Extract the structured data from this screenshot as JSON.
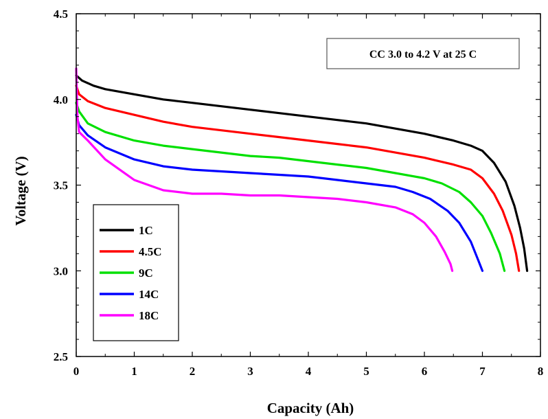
{
  "chart_data": {
    "type": "line",
    "title": "",
    "xlabel": "Capacity (Ah)",
    "ylabel": "Voltage (V)",
    "xlim": [
      0,
      8
    ],
    "ylim": [
      2.5,
      4.5
    ],
    "x_ticks": [
      0,
      1,
      2,
      3,
      4,
      5,
      6,
      7,
      8
    ],
    "x_tick_labels": [
      "0",
      "1",
      "2",
      "3",
      "4",
      "5",
      "6",
      "7",
      "8"
    ],
    "y_ticks": [
      2.5,
      3.0,
      3.5,
      4.0,
      4.5
    ],
    "y_tick_labels": [
      "2.5",
      "3.0",
      "3.5",
      "4.0",
      "4.5"
    ],
    "grid": false,
    "legend_position": "bottom-left",
    "annotation": "CC 3.0 to 4.2 V at 25  C",
    "series": [
      {
        "name": "1C",
        "color": "#000000",
        "points": [
          [
            0.0,
            4.14
          ],
          [
            0.1,
            4.11
          ],
          [
            0.3,
            4.08
          ],
          [
            0.5,
            4.06
          ],
          [
            1.0,
            4.03
          ],
          [
            1.5,
            4.0
          ],
          [
            2.0,
            3.98
          ],
          [
            2.5,
            3.96
          ],
          [
            3.0,
            3.94
          ],
          [
            3.5,
            3.92
          ],
          [
            4.0,
            3.9
          ],
          [
            4.5,
            3.88
          ],
          [
            5.0,
            3.86
          ],
          [
            5.5,
            3.83
          ],
          [
            6.0,
            3.8
          ],
          [
            6.5,
            3.76
          ],
          [
            6.8,
            3.73
          ],
          [
            7.0,
            3.7
          ],
          [
            7.2,
            3.63
          ],
          [
            7.4,
            3.52
          ],
          [
            7.55,
            3.38
          ],
          [
            7.65,
            3.25
          ],
          [
            7.72,
            3.13
          ],
          [
            7.77,
            3.0
          ]
        ]
      },
      {
        "name": "4.5C",
        "color": "#ff0000",
        "points": [
          [
            0.0,
            4.08
          ],
          [
            0.05,
            4.03
          ],
          [
            0.2,
            3.99
          ],
          [
            0.5,
            3.95
          ],
          [
            1.0,
            3.91
          ],
          [
            1.5,
            3.87
          ],
          [
            2.0,
            3.84
          ],
          [
            2.5,
            3.82
          ],
          [
            3.0,
            3.8
          ],
          [
            3.5,
            3.78
          ],
          [
            4.0,
            3.76
          ],
          [
            4.5,
            3.74
          ],
          [
            5.0,
            3.72
          ],
          [
            5.5,
            3.69
          ],
          [
            6.0,
            3.66
          ],
          [
            6.5,
            3.62
          ],
          [
            6.8,
            3.59
          ],
          [
            7.0,
            3.54
          ],
          [
            7.2,
            3.45
          ],
          [
            7.35,
            3.35
          ],
          [
            7.5,
            3.21
          ],
          [
            7.58,
            3.1
          ],
          [
            7.63,
            3.0
          ]
        ]
      },
      {
        "name": "9C",
        "color": "#00e000",
        "points": [
          [
            0.0,
            3.98
          ],
          [
            0.05,
            3.93
          ],
          [
            0.2,
            3.86
          ],
          [
            0.5,
            3.81
          ],
          [
            1.0,
            3.76
          ],
          [
            1.5,
            3.73
          ],
          [
            2.0,
            3.71
          ],
          [
            2.5,
            3.69
          ],
          [
            3.0,
            3.67
          ],
          [
            3.5,
            3.66
          ],
          [
            4.0,
            3.64
          ],
          [
            4.5,
            3.62
          ],
          [
            5.0,
            3.6
          ],
          [
            5.5,
            3.57
          ],
          [
            6.0,
            3.54
          ],
          [
            6.3,
            3.51
          ],
          [
            6.6,
            3.46
          ],
          [
            6.8,
            3.4
          ],
          [
            7.0,
            3.32
          ],
          [
            7.15,
            3.22
          ],
          [
            7.3,
            3.1
          ],
          [
            7.38,
            3.0
          ]
        ]
      },
      {
        "name": "14C",
        "color": "#0000ff",
        "points": [
          [
            0.0,
            3.91
          ],
          [
            0.05,
            3.85
          ],
          [
            0.2,
            3.79
          ],
          [
            0.5,
            3.72
          ],
          [
            1.0,
            3.65
          ],
          [
            1.5,
            3.61
          ],
          [
            2.0,
            3.59
          ],
          [
            2.5,
            3.58
          ],
          [
            3.0,
            3.57
          ],
          [
            3.5,
            3.56
          ],
          [
            4.0,
            3.55
          ],
          [
            4.5,
            3.53
          ],
          [
            5.0,
            3.51
          ],
          [
            5.5,
            3.49
          ],
          [
            5.8,
            3.46
          ],
          [
            6.1,
            3.42
          ],
          [
            6.4,
            3.35
          ],
          [
            6.6,
            3.28
          ],
          [
            6.8,
            3.17
          ],
          [
            6.93,
            3.06
          ],
          [
            7.0,
            3.0
          ]
        ]
      },
      {
        "name": "18C",
        "color": "#ff00ff",
        "points": [
          [
            0.0,
            4.18
          ],
          [
            0.02,
            3.9
          ],
          [
            0.05,
            3.81
          ],
          [
            0.2,
            3.76
          ],
          [
            0.5,
            3.65
          ],
          [
            1.0,
            3.53
          ],
          [
            1.5,
            3.47
          ],
          [
            2.0,
            3.45
          ],
          [
            2.5,
            3.45
          ],
          [
            3.0,
            3.44
          ],
          [
            3.5,
            3.44
          ],
          [
            4.0,
            3.43
          ],
          [
            4.5,
            3.42
          ],
          [
            5.0,
            3.4
          ],
          [
            5.5,
            3.37
          ],
          [
            5.8,
            3.33
          ],
          [
            6.0,
            3.28
          ],
          [
            6.2,
            3.2
          ],
          [
            6.35,
            3.11
          ],
          [
            6.45,
            3.04
          ],
          [
            6.48,
            3.0
          ]
        ]
      }
    ]
  }
}
